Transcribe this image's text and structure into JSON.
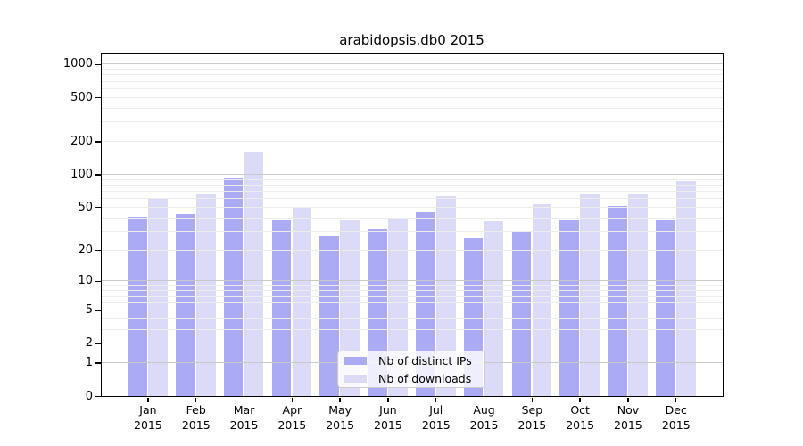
{
  "chart_data": {
    "type": "bar",
    "title": "arabidopsis.db0 2015",
    "categories": [
      "Jan",
      "Feb",
      "Mar",
      "Apr",
      "May",
      "Jun",
      "Jul",
      "Aug",
      "Sep",
      "Oct",
      "Nov",
      "Dec"
    ],
    "x_year_label": "2015",
    "series": [
      {
        "name": "Nb of distinct IPs",
        "color": "#a2a2f2",
        "values": [
          41,
          43,
          91,
          38,
          27,
          31,
          45,
          26,
          30,
          38,
          51,
          38
        ]
      },
      {
        "name": "Nb of downloads",
        "color": "#d7d7f7",
        "values": [
          60,
          65,
          161,
          49,
          38,
          39,
          63,
          37,
          53,
          65,
          66,
          86
        ]
      }
    ],
    "yscale": "log1p",
    "yticks": [
      0,
      1,
      2,
      5,
      10,
      20,
      50,
      100,
      200,
      500,
      1000
    ],
    "ylim": [
      0,
      1270
    ],
    "grid": true,
    "legend_position": "lower center",
    "grid_major_color": "#c9c9c9",
    "grid_minor_color": "#ececec"
  }
}
